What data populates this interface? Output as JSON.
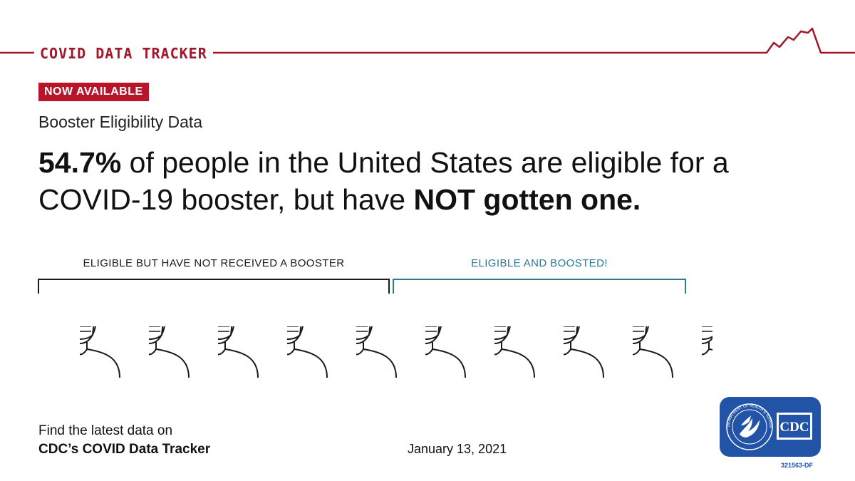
{
  "header": {
    "title": "COVID DATA TRACKER",
    "accent_color": "#a3172b"
  },
  "badge": {
    "label": "NOW AVAILABLE",
    "color": "#b8152b"
  },
  "subtitle": "Booster Eligibility Data",
  "headline": {
    "percent": "54.7%",
    "text_part1": " of people in the United States are eligible for a COVID-19 booster, but have ",
    "emphasis": "NOT gotten one."
  },
  "groups": {
    "not_boosted": {
      "label": "ELIGIBLE BUT HAVE NOT RECEIVED A BOOSTER",
      "color": "#1a1a1a"
    },
    "boosted": {
      "label": "ELIGIBLE AND BOOSTED!",
      "color": "#2f7797"
    }
  },
  "people": {
    "total": 10,
    "not_boosted_share": 0.547,
    "icon": "masked-person-icon"
  },
  "footer": {
    "line1": "Find the latest data on",
    "line2": "CDC’s COVID Data Tracker"
  },
  "date": "January 13, 2021",
  "logo": {
    "icon": "hhs-eagle-icon",
    "text": "CDC",
    "ring_text": "DEPARTMENT OF HEALTH & HUMAN SERVICES USA",
    "code": "321563-DF",
    "color": "#2153a6"
  }
}
